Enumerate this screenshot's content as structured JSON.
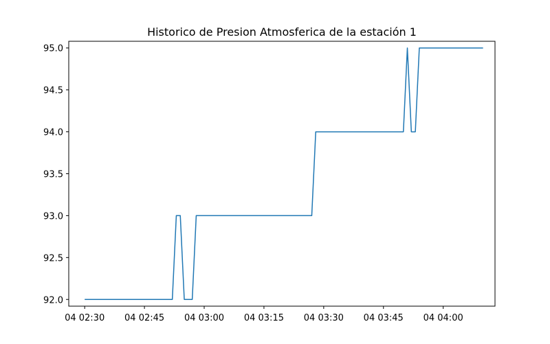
{
  "chart_data": {
    "type": "line",
    "title": "Historico de Presion Atmosferica de la estación 1",
    "xlabel": "",
    "ylabel": "",
    "x_type": "time",
    "xlim": [
      "04 02:26",
      "04 04:13"
    ],
    "ylim": [
      91.92,
      95.08
    ],
    "grid": false,
    "legend": "none",
    "xticks": [
      {
        "value": "04 02:30",
        "label": "04 02:30"
      },
      {
        "value": "04 02:45",
        "label": "04 02:45"
      },
      {
        "value": "04 03:00",
        "label": "04 03:00"
      },
      {
        "value": "04 03:15",
        "label": "04 03:15"
      },
      {
        "value": "04 03:30",
        "label": "04 03:30"
      },
      {
        "value": "04 03:45",
        "label": "04 03:45"
      },
      {
        "value": "04 04:00",
        "label": "04 04:00"
      }
    ],
    "yticks": [
      {
        "value": 92.0,
        "label": "92.0"
      },
      {
        "value": 92.5,
        "label": "92.5"
      },
      {
        "value": 93.0,
        "label": "93.0"
      },
      {
        "value": 93.5,
        "label": "93.5"
      },
      {
        "value": 94.0,
        "label": "94.0"
      },
      {
        "value": 94.5,
        "label": "94.5"
      },
      {
        "value": 95.0,
        "label": "95.0"
      }
    ],
    "series": [
      {
        "color": "#1f77b4",
        "x": [
          "04 02:30",
          "04 02:52",
          "04 02:53",
          "04 02:54",
          "04 02:55",
          "04 02:57",
          "04 02:58",
          "04 03:27",
          "04 03:28",
          "04 03:50",
          "04 03:51",
          "04 03:52",
          "04 03:53",
          "04 03:54",
          "04 04:10"
        ],
        "y": [
          92.0,
          92.0,
          93.0,
          93.0,
          92.0,
          92.0,
          93.0,
          93.0,
          94.0,
          94.0,
          95.0,
          94.0,
          94.0,
          95.0,
          95.0
        ]
      }
    ]
  }
}
